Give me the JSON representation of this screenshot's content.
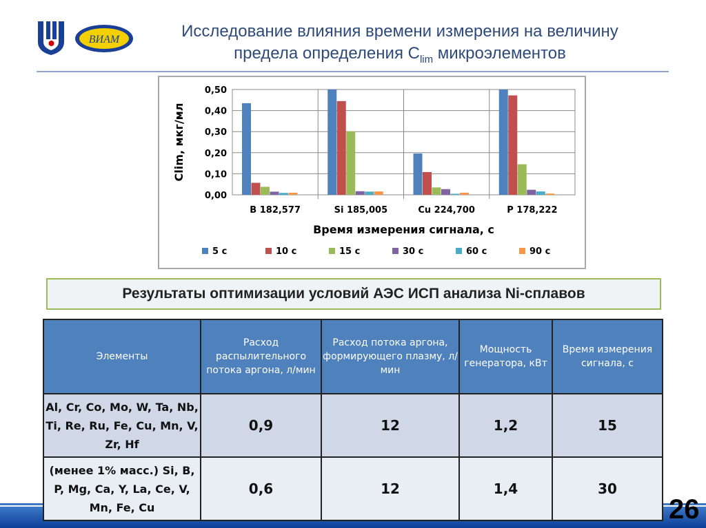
{
  "header": {
    "title_line1": "Исследование влияния времени измерения на величину",
    "title_line2_pre": "предела определения C",
    "title_sub": "lim",
    "title_line2_post": " микроэлементов",
    "logo_text": "ВИАМ"
  },
  "chart_data": {
    "type": "bar",
    "ylabel": "Clim, мкг/мл",
    "xlabel": "Время измерения сигнала, с",
    "ylim": [
      0,
      0.5
    ],
    "yticks": [
      "0,00",
      "0,10",
      "0,20",
      "0,30",
      "0,40",
      "0,50"
    ],
    "grid": true,
    "legend": "bottom",
    "categories": [
      "B 182,577",
      "Si 185,005",
      "Cu 224,700",
      "P 178,222"
    ],
    "series": [
      {
        "name": "5 с",
        "color": "#4f81bd",
        "values": [
          0.435,
          0.5,
          0.196,
          0.5
        ]
      },
      {
        "name": "10 с",
        "color": "#c0504d",
        "values": [
          0.057,
          0.445,
          0.108,
          0.472
        ]
      },
      {
        "name": "15 с",
        "color": "#9bbb59",
        "values": [
          0.038,
          0.302,
          0.035,
          0.145
        ]
      },
      {
        "name": "30 с",
        "color": "#8064a2",
        "values": [
          0.015,
          0.017,
          0.027,
          0.024
        ]
      },
      {
        "name": "60 с",
        "color": "#4bacc6",
        "values": [
          0.009,
          0.015,
          0.005,
          0.016
        ]
      },
      {
        "name": "90 с",
        "color": "#f79646",
        "values": [
          0.01,
          0.016,
          0.01,
          0.006
        ]
      }
    ]
  },
  "results": {
    "title": "Результаты оптимизации условий АЭС ИСП анализа Ni-сплавов",
    "headers": [
      "Элементы",
      "Расход распылительного потока аргона, л/мин",
      "Расход потока аргона, формирующего плазму, л/мин",
      "Мощность генератора, кВт",
      "Время измерения сигнала, с"
    ],
    "rows": [
      [
        "Al, Cr, Co, Mo, W, Ta, Nb, Ti, Re, Ru, Fe, Cu, Mn, V, Zr, Hf",
        "0,9",
        "12",
        "1,2",
        "15"
      ],
      [
        "(менее 1% масс.) Si, B, P, Mg, Ca, Y, La, Ce, V, Mn, Fe, Cu",
        "0,6",
        "12",
        "1,4",
        "30"
      ]
    ]
  },
  "page_number": "26"
}
